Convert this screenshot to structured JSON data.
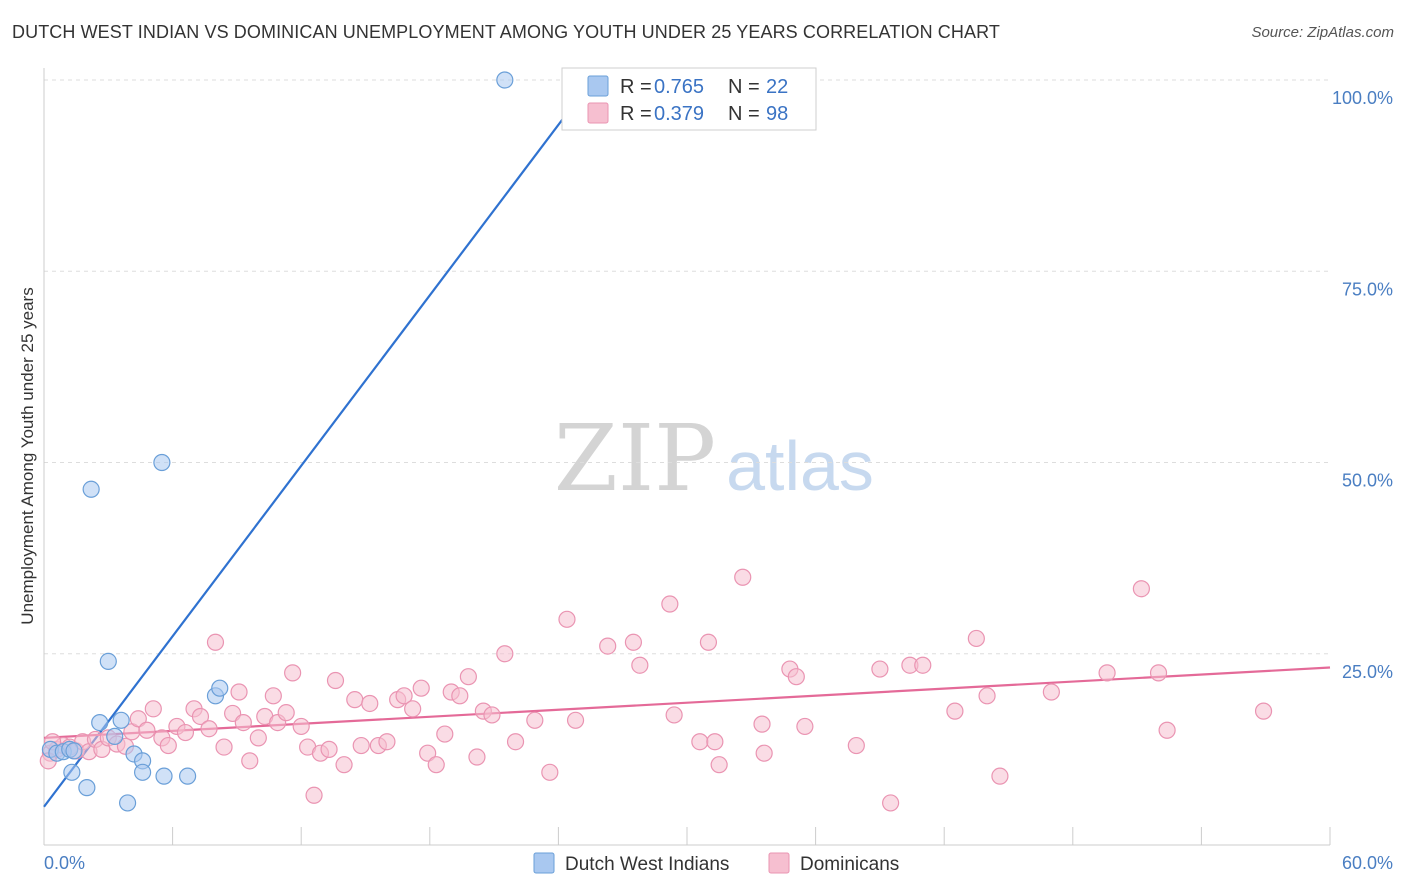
{
  "title": "DUTCH WEST INDIAN VS DOMINICAN UNEMPLOYMENT AMONG YOUTH UNDER 25 YEARS CORRELATION CHART",
  "source": "Source: ZipAtlas.com",
  "watermark": {
    "zip": "ZIP",
    "atlas": "atlas"
  },
  "colors": {
    "blue_fill": "#a9c8f0",
    "blue_stroke": "#6a9fd8",
    "blue_line": "#2f72d0",
    "pink_fill": "#f6bfd0",
    "pink_stroke": "#ea94b2",
    "pink_line": "#e46a98",
    "grid": "#dddddd",
    "tick_text": "#4a7ec2"
  },
  "legend": {
    "r_label": "R =",
    "n_label": "N =",
    "entries": [
      {
        "r": "0.765",
        "n": "22",
        "color": "blue"
      },
      {
        "r": "0.379",
        "n": "98",
        "color": "pink"
      }
    ]
  },
  "chart_data": {
    "type": "scatter",
    "title": "DUTCH WEST INDIAN VS DOMINICAN UNEMPLOYMENT AMONG YOUTH UNDER 25 YEARS CORRELATION CHART",
    "ylabel": "Unemployment Among Youth under 25 years",
    "xlabel": "",
    "xlim": [
      0,
      60
    ],
    "ylim": [
      0,
      100
    ],
    "x_tick_labels": [
      "0.0%",
      "60.0%"
    ],
    "y_tick_labels": [
      "100.0%",
      "75.0%",
      "50.0%",
      "25.0%"
    ],
    "y_tick_values": [
      100,
      75,
      50,
      25
    ],
    "series": [
      {
        "name": "Dutch West Indians",
        "color": "blue",
        "r": 0.765,
        "n": 22,
        "trend": {
          "x0": 0,
          "y0": 5.0,
          "x1": 24.5,
          "y1": 96.0
        },
        "points": [
          [
            0.3,
            12.5
          ],
          [
            0.6,
            12.0
          ],
          [
            0.9,
            12.2
          ],
          [
            1.2,
            12.5
          ],
          [
            1.4,
            12.3
          ],
          [
            1.3,
            9.5
          ],
          [
            2.0,
            7.5
          ],
          [
            2.2,
            46.5
          ],
          [
            3.0,
            24.0
          ],
          [
            2.6,
            16.0
          ],
          [
            3.6,
            16.3
          ],
          [
            3.3,
            14.2
          ],
          [
            4.2,
            11.9
          ],
          [
            4.6,
            11.0
          ],
          [
            4.6,
            9.5
          ],
          [
            3.9,
            5.5
          ],
          [
            5.6,
            9.0
          ],
          [
            6.7,
            9.0
          ],
          [
            5.5,
            50.0
          ],
          [
            8.0,
            19.5
          ],
          [
            8.2,
            20.5
          ],
          [
            21.5,
            100.0
          ]
        ]
      },
      {
        "name": "Dominicans",
        "color": "pink",
        "r": 0.379,
        "n": 98,
        "trend": {
          "x0": 0,
          "y0": 14.0,
          "x1": 60,
          "y1": 23.2
        },
        "points": [
          [
            0.3,
            12.0
          ],
          [
            0.6,
            12.5
          ],
          [
            0.9,
            13.0
          ],
          [
            1.2,
            12.8
          ],
          [
            1.5,
            12.3
          ],
          [
            1.8,
            13.5
          ],
          [
            2.1,
            12.2
          ],
          [
            2.4,
            13.8
          ],
          [
            2.7,
            12.5
          ],
          [
            3.0,
            14.0
          ],
          [
            3.4,
            13.2
          ],
          [
            3.8,
            12.9
          ],
          [
            4.1,
            14.8
          ],
          [
            4.4,
            16.5
          ],
          [
            4.8,
            15.0
          ],
          [
            5.1,
            17.8
          ],
          [
            5.5,
            14.0
          ],
          [
            5.8,
            13.0
          ],
          [
            6.2,
            15.5
          ],
          [
            6.6,
            14.7
          ],
          [
            7.0,
            17.8
          ],
          [
            7.3,
            16.8
          ],
          [
            7.7,
            15.2
          ],
          [
            8.0,
            26.5
          ],
          [
            8.4,
            12.8
          ],
          [
            8.8,
            17.2
          ],
          [
            9.1,
            20.0
          ],
          [
            9.3,
            16.0
          ],
          [
            9.6,
            11.0
          ],
          [
            10.0,
            14.0
          ],
          [
            10.3,
            16.8
          ],
          [
            10.7,
            19.5
          ],
          [
            10.9,
            16.0
          ],
          [
            11.3,
            17.3
          ],
          [
            11.6,
            22.5
          ],
          [
            12.0,
            15.5
          ],
          [
            12.3,
            12.8
          ],
          [
            12.6,
            6.5
          ],
          [
            12.9,
            12.0
          ],
          [
            13.3,
            12.5
          ],
          [
            13.6,
            21.5
          ],
          [
            14.0,
            10.5
          ],
          [
            14.5,
            19.0
          ],
          [
            14.8,
            13.0
          ],
          [
            15.2,
            18.5
          ],
          [
            15.6,
            13.0
          ],
          [
            16.0,
            13.5
          ],
          [
            16.5,
            19.0
          ],
          [
            16.8,
            19.5
          ],
          [
            17.2,
            17.8
          ],
          [
            17.6,
            20.5
          ],
          [
            17.9,
            12.0
          ],
          [
            18.3,
            10.5
          ],
          [
            18.7,
            14.5
          ],
          [
            19.0,
            20.0
          ],
          [
            19.4,
            19.5
          ],
          [
            19.8,
            22.0
          ],
          [
            20.2,
            11.5
          ],
          [
            20.5,
            17.5
          ],
          [
            20.9,
            17.0
          ],
          [
            21.5,
            25.0
          ],
          [
            22.0,
            13.5
          ],
          [
            22.9,
            16.3
          ],
          [
            23.6,
            9.5
          ],
          [
            24.4,
            29.5
          ],
          [
            24.8,
            16.3
          ],
          [
            26.3,
            26.0
          ],
          [
            27.5,
            26.5
          ],
          [
            27.8,
            23.5
          ],
          [
            29.2,
            31.5
          ],
          [
            29.4,
            17.0
          ],
          [
            30.6,
            13.5
          ],
          [
            31.0,
            26.5
          ],
          [
            31.3,
            13.5
          ],
          [
            31.5,
            10.5
          ],
          [
            32.6,
            35.0
          ],
          [
            33.5,
            15.8
          ],
          [
            33.6,
            12.0
          ],
          [
            34.8,
            23.0
          ],
          [
            35.1,
            22.0
          ],
          [
            35.5,
            15.5
          ],
          [
            37.9,
            13.0
          ],
          [
            39.0,
            23.0
          ],
          [
            39.5,
            5.5
          ],
          [
            40.4,
            23.5
          ],
          [
            41.0,
            23.5
          ],
          [
            42.5,
            17.5
          ],
          [
            43.5,
            27.0
          ],
          [
            44.0,
            19.5
          ],
          [
            44.6,
            9.0
          ],
          [
            47.0,
            20.0
          ],
          [
            49.6,
            22.5
          ],
          [
            51.2,
            33.5
          ],
          [
            52.0,
            22.5
          ],
          [
            52.4,
            15.0
          ],
          [
            56.9,
            17.5
          ],
          [
            0.2,
            11.0
          ],
          [
            0.4,
            13.5
          ]
        ]
      }
    ]
  },
  "bottom_legend": [
    {
      "label": "Dutch West Indians",
      "color": "blue"
    },
    {
      "label": "Dominicans",
      "color": "pink"
    }
  ]
}
